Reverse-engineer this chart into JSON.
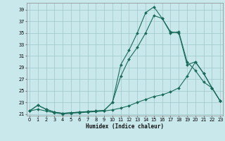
{
  "xlabel": "Humidex (Indice chaleur)",
  "bg_color": "#c8e8ec",
  "grid_color": "#a0c8cc",
  "line_color": "#1a6b5a",
  "xlim": [
    -0.3,
    23.3
  ],
  "ylim": [
    20.7,
    40.2
  ],
  "yticks": [
    21,
    23,
    25,
    27,
    29,
    31,
    33,
    35,
    37,
    39
  ],
  "xticks": [
    0,
    1,
    2,
    3,
    4,
    5,
    6,
    7,
    8,
    9,
    10,
    11,
    12,
    13,
    14,
    15,
    16,
    17,
    18,
    19,
    20,
    21,
    22,
    23
  ],
  "line_top_x": [
    0,
    1,
    2,
    3,
    4,
    5,
    6,
    7,
    8,
    9,
    10,
    11,
    12,
    13,
    14,
    15,
    16,
    17,
    18,
    19,
    20,
    21,
    22,
    23
  ],
  "line_top_y": [
    21.5,
    22.5,
    21.8,
    21.3,
    21.1,
    21.2,
    21.3,
    21.4,
    21.5,
    21.6,
    23.0,
    29.5,
    32.0,
    35.0,
    38.5,
    39.5,
    37.5,
    35.0,
    35.2,
    30.0,
    28.5,
    26.5,
    25.5,
    23.2
  ],
  "line_mid_x": [
    0,
    1,
    2,
    3,
    4,
    5,
    6,
    7,
    8,
    9,
    10,
    11,
    12,
    13,
    14,
    15,
    16,
    17,
    18,
    19,
    20,
    21,
    22,
    23
  ],
  "line_mid_y": [
    21.5,
    22.5,
    21.8,
    21.3,
    21.1,
    21.2,
    21.3,
    21.4,
    21.5,
    21.6,
    23.0,
    27.5,
    30.5,
    32.5,
    35.0,
    38.0,
    37.5,
    35.2,
    35.0,
    29.5,
    30.0,
    28.0,
    25.5,
    23.2
  ],
  "line_bot_x": [
    0,
    1,
    2,
    3,
    4,
    5,
    6,
    7,
    8,
    9,
    10,
    11,
    12,
    13,
    14,
    15,
    16,
    17,
    18,
    19,
    20,
    21,
    22,
    23
  ],
  "line_bot_y": [
    21.5,
    21.8,
    21.5,
    21.2,
    21.0,
    21.1,
    21.2,
    21.3,
    21.4,
    21.5,
    21.7,
    22.0,
    22.4,
    23.0,
    23.5,
    24.0,
    24.3,
    24.8,
    25.5,
    27.5,
    30.0,
    28.0,
    25.5,
    23.2
  ]
}
